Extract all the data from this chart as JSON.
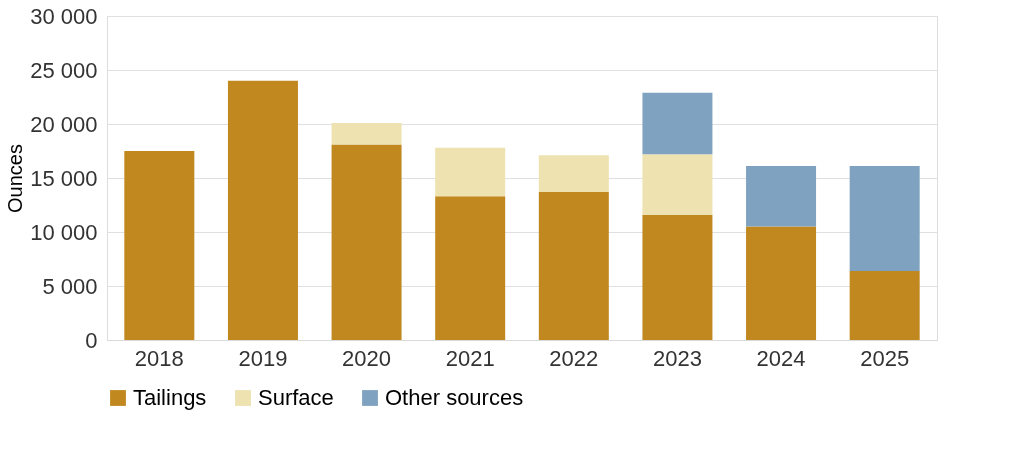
{
  "chart_data": {
    "type": "bar",
    "stacked": true,
    "ylabel": "Ounces",
    "categories": [
      "2018",
      "2019",
      "2020",
      "2021",
      "2022",
      "2023",
      "2024",
      "2025"
    ],
    "series": [
      {
        "name": "Tailings",
        "color": "#c0881e",
        "values": [
          17500,
          24000,
          18100,
          13300,
          13700,
          11600,
          10500,
          6400
        ]
      },
      {
        "name": "Surface",
        "color": "#ede2b0",
        "values": [
          null,
          null,
          2000,
          4500,
          3400,
          5600,
          null,
          null
        ]
      },
      {
        "name": "Other sources",
        "color": "#7fa2c0",
        "values": [
          null,
          null,
          null,
          null,
          null,
          5700,
          5600,
          9700
        ]
      }
    ],
    "ylim": [
      0,
      30000
    ],
    "yticks": [
      0,
      {
        "value": 5000,
        "label": "5 000"
      },
      {
        "value": 10000,
        "label": "10 000"
      },
      {
        "value": 15000,
        "label": "15 000"
      },
      {
        "value": 20000,
        "label": "20 000"
      },
      {
        "value": 25000,
        "label": "25 000"
      },
      {
        "value": 30000,
        "label": "30 000"
      }
    ],
    "grid": "y",
    "legend": "bottom"
  }
}
